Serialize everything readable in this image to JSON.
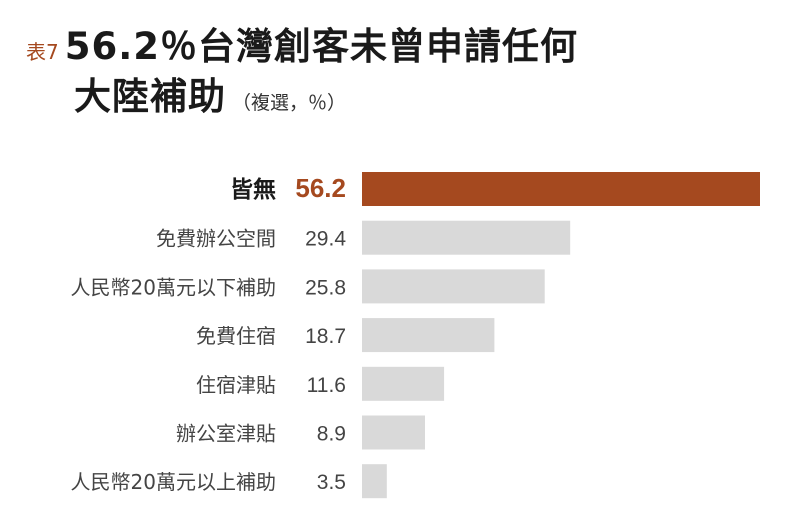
{
  "figure_label": "表7",
  "title_line1": "56.2％台灣創客未曾申請任何",
  "title_line2": "大陸補助",
  "subtitle": "（複選，％）",
  "colors": {
    "highlight": "#a5491f",
    "bar": "#d9d9d9",
    "label": "#444444",
    "highlight_label": "#1a1a1a"
  },
  "chart_data": {
    "type": "bar",
    "orientation": "horizontal",
    "title": "56.2％台灣創客未曾申請任何大陸補助",
    "subtitle": "（複選，％）",
    "categories": [
      "皆無",
      "免費辦公空間",
      "人民幣20萬元以下補助",
      "免費住宿",
      "住宿津貼",
      "辦公室津貼",
      "人民幣20萬元以上補助"
    ],
    "value_labels": [
      "56.2",
      "29.4",
      "25.8",
      "18.7",
      "11.6",
      "8.9",
      "3.5"
    ],
    "values": [
      56.2,
      29.4,
      25.8,
      18.7,
      11.6,
      8.9,
      3.5
    ],
    "highlight_index": 0,
    "xlim": [
      0,
      56.2
    ],
    "grid": false,
    "legend": "none"
  }
}
